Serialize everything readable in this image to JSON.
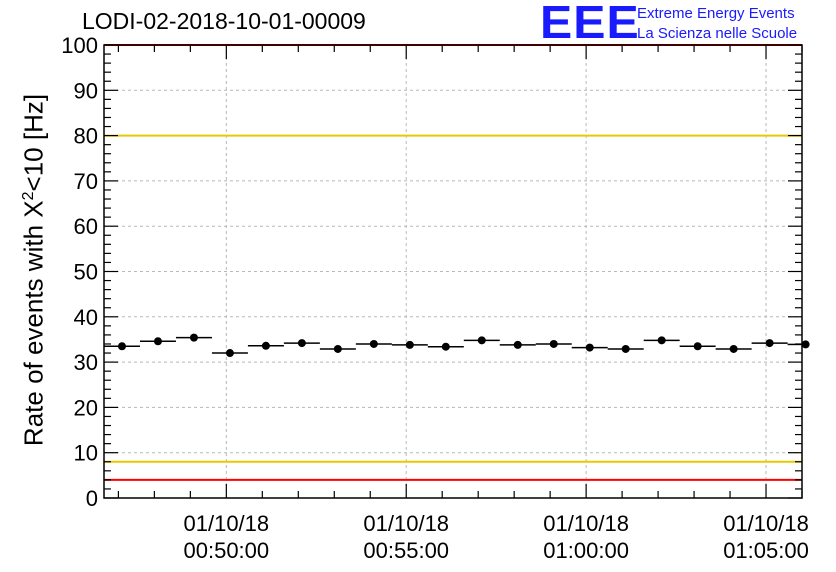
{
  "chart_data": {
    "type": "scatter",
    "title": "LODI-02-2018-10-01-00009",
    "ylabel_parts": {
      "pre": "Rate of events with X",
      "sup": "2",
      "post": "<10 [Hz]"
    },
    "ylim": [
      0,
      100
    ],
    "yticks": [
      0,
      10,
      20,
      30,
      40,
      50,
      60,
      70,
      80,
      90,
      100
    ],
    "x_minutes_range": [
      46.6,
      66.0
    ],
    "xtick_minutes": [
      50,
      55,
      60,
      65
    ],
    "xtick_labels": [
      {
        "date": "01/10/18",
        "time": "00:50:00"
      },
      {
        "date": "01/10/18",
        "time": "00:55:00"
      },
      {
        "date": "01/10/18",
        "time": "01:00:00"
      },
      {
        "date": "01/10/18",
        "time": "01:05:00"
      }
    ],
    "bin_width_minutes": 1.0,
    "series": [
      {
        "name": "rate",
        "x_minutes": [
          47.1,
          48.1,
          49.1,
          50.1,
          51.1,
          52.1,
          53.1,
          54.1,
          55.1,
          56.1,
          57.1,
          58.1,
          59.1,
          60.1,
          61.1,
          62.1,
          63.1,
          64.1,
          65.1,
          66.1
        ],
        "values": [
          33.5,
          34.6,
          35.4,
          32.0,
          33.6,
          34.2,
          32.9,
          34.0,
          33.8,
          33.4,
          34.8,
          33.8,
          34.0,
          33.2,
          32.9,
          34.8,
          33.5,
          32.9,
          34.2,
          33.9
        ]
      }
    ],
    "reference_lines": [
      {
        "name": "upper-red",
        "value": 100,
        "color": "#ff0000"
      },
      {
        "name": "upper-yellow",
        "value": 80,
        "color": "#e8c800"
      },
      {
        "name": "lower-yellow",
        "value": 8,
        "color": "#e8c800"
      },
      {
        "name": "lower-red",
        "value": 4,
        "color": "#ff0000"
      }
    ],
    "grid": true
  },
  "logo": {
    "mark": "EEE",
    "line1": "Extreme Energy Events",
    "line2": "La Scienza nelle Scuole",
    "color": "#1a1aff"
  }
}
